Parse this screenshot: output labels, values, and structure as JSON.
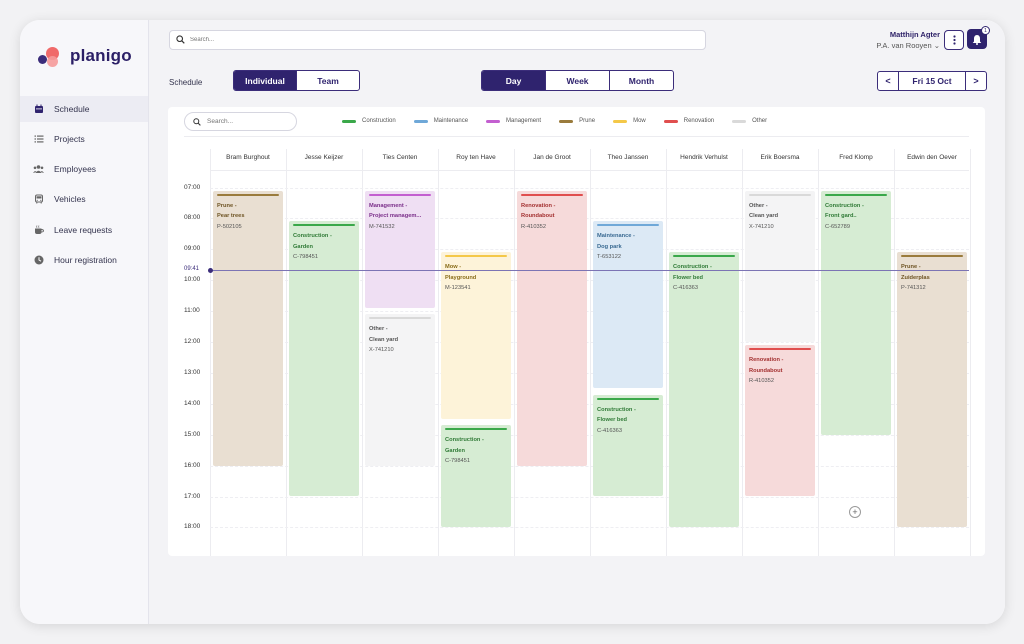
{
  "app": {
    "name": "planigo"
  },
  "sidebar": {
    "items": [
      {
        "label": "Schedule",
        "icon": "calendar-icon"
      },
      {
        "label": "Projects",
        "icon": "list-icon"
      },
      {
        "label": "Employees",
        "icon": "users-icon"
      },
      {
        "label": "Vehicles",
        "icon": "bus-icon"
      },
      {
        "label": "Leave requests",
        "icon": "cup-icon"
      },
      {
        "label": "Hour registration",
        "icon": "clock-icon"
      }
    ]
  },
  "header": {
    "search_placeholder": "Search...",
    "user_name": "Matthijn Agter",
    "company": "P.A. van Rooyen ⌄",
    "notifications": "1"
  },
  "toolbar": {
    "schedule_label": "Schedule",
    "view_individual": "Individual",
    "view_team": "Team",
    "range_day": "Day",
    "range_week": "Week",
    "range_month": "Month",
    "date": "Fri 15 Oct",
    "prev": "<",
    "next": ">"
  },
  "board": {
    "search_placeholder": "Search...",
    "legend": [
      {
        "label": "Construction",
        "color": "#3aa84a"
      },
      {
        "label": "Maintenance",
        "color": "#6fa8d8"
      },
      {
        "label": "Management",
        "color": "#c35fd0"
      },
      {
        "label": "Prune",
        "color": "#9a7b3c"
      },
      {
        "label": "Mow",
        "color": "#f4c848"
      },
      {
        "label": "Renovation",
        "color": "#e04e4e"
      },
      {
        "label": "Other",
        "color": "#d9d9d9"
      }
    ],
    "current_time": "09:41",
    "hours": [
      "07:00",
      "08:00",
      "09:00",
      "10:00",
      "11:00",
      "12:00",
      "13:00",
      "14:00",
      "15:00",
      "16:00",
      "17:00",
      "18:00"
    ],
    "employees": [
      "Bram Burghout",
      "Jesse Keijzer",
      "Ties Centen",
      "Roy ten Have",
      "Jan de Groot",
      "Theo Janssen",
      "Hendrik Verhulst",
      "Erik Boersma",
      "Fred Klomp",
      "Edwin den Oever"
    ],
    "add_icon": "plus-circle-icon",
    "events": [
      {
        "col": 0,
        "start": 7.1,
        "end": 16.0,
        "type": "Prune",
        "title": "Prune -",
        "subtitle": "Pear trees",
        "code": "P-502105"
      },
      {
        "col": 1,
        "start": 8.1,
        "end": 17.0,
        "type": "Construction",
        "title": "Construction -",
        "subtitle": "Garden",
        "code": "C-798451"
      },
      {
        "col": 2,
        "start": 7.1,
        "end": 10.9,
        "type": "Management",
        "title": "Management -",
        "subtitle": "Project managem...",
        "code": "M-741532"
      },
      {
        "col": 2,
        "start": 11.1,
        "end": 16.0,
        "type": "Other",
        "title": "Other -",
        "subtitle": "Clean yard",
        "code": "X-741210"
      },
      {
        "col": 3,
        "start": 9.1,
        "end": 14.5,
        "type": "Mow",
        "title": "Mow -",
        "subtitle": "Playground",
        "code": "M-123541"
      },
      {
        "col": 3,
        "start": 14.7,
        "end": 18.0,
        "type": "Construction",
        "title": "Construction -",
        "subtitle": "Garden",
        "code": "C-798451"
      },
      {
        "col": 4,
        "start": 7.1,
        "end": 16.0,
        "type": "Renovation",
        "title": "Renovation -",
        "subtitle": "Roundabout",
        "code": "R-410352"
      },
      {
        "col": 5,
        "start": 8.1,
        "end": 13.5,
        "type": "Maintenance",
        "title": "Maintenance -",
        "subtitle": "Dog park",
        "code": "T-653122"
      },
      {
        "col": 5,
        "start": 13.7,
        "end": 17.0,
        "type": "Construction",
        "title": "Construction -",
        "subtitle": "Flower bed",
        "code": "C-416363"
      },
      {
        "col": 6,
        "start": 9.1,
        "end": 18.0,
        "type": "Construction",
        "title": "Construction -",
        "subtitle": "Flower bed",
        "code": "C-416363"
      },
      {
        "col": 7,
        "start": 7.1,
        "end": 12.0,
        "type": "Other",
        "title": "Other -",
        "subtitle": "Clean yard",
        "code": "X-741210"
      },
      {
        "col": 7,
        "start": 12.1,
        "end": 17.0,
        "type": "Renovation",
        "title": "Renovation -",
        "subtitle": "Roundabout",
        "code": "R-410352"
      },
      {
        "col": 8,
        "start": 7.1,
        "end": 15.0,
        "type": "Construction",
        "title": "Construction -",
        "subtitle": "Front gard..",
        "code": "C-652789"
      },
      {
        "col": 9,
        "start": 9.1,
        "end": 18.0,
        "type": "Prune",
        "title": "Prune -",
        "subtitle": "Zuiderplas",
        "code": "P-741312"
      }
    ]
  },
  "type_styles": {
    "Construction": {
      "bg": "#d6ecd3",
      "bar": "#3aa84a",
      "text": "#2f7a36"
    },
    "Maintenance": {
      "bg": "#dce9f5",
      "bar": "#6fa8d8",
      "text": "#3a6a92"
    },
    "Management": {
      "bg": "#efdff3",
      "bar": "#c35fd0",
      "text": "#7b2f8a"
    },
    "Prune": {
      "bg": "#e9dfd2",
      "bar": "#9a7b3c",
      "text": "#6d5323"
    },
    "Mow": {
      "bg": "#fdf3d9",
      "bar": "#f4c848",
      "text": "#8a6d1a"
    },
    "Renovation": {
      "bg": "#f6dada",
      "bar": "#e04e4e",
      "text": "#a33030"
    },
    "Other": {
      "bg": "#f4f4f5",
      "bar": "#d9d9d9",
      "text": "#555555"
    }
  }
}
